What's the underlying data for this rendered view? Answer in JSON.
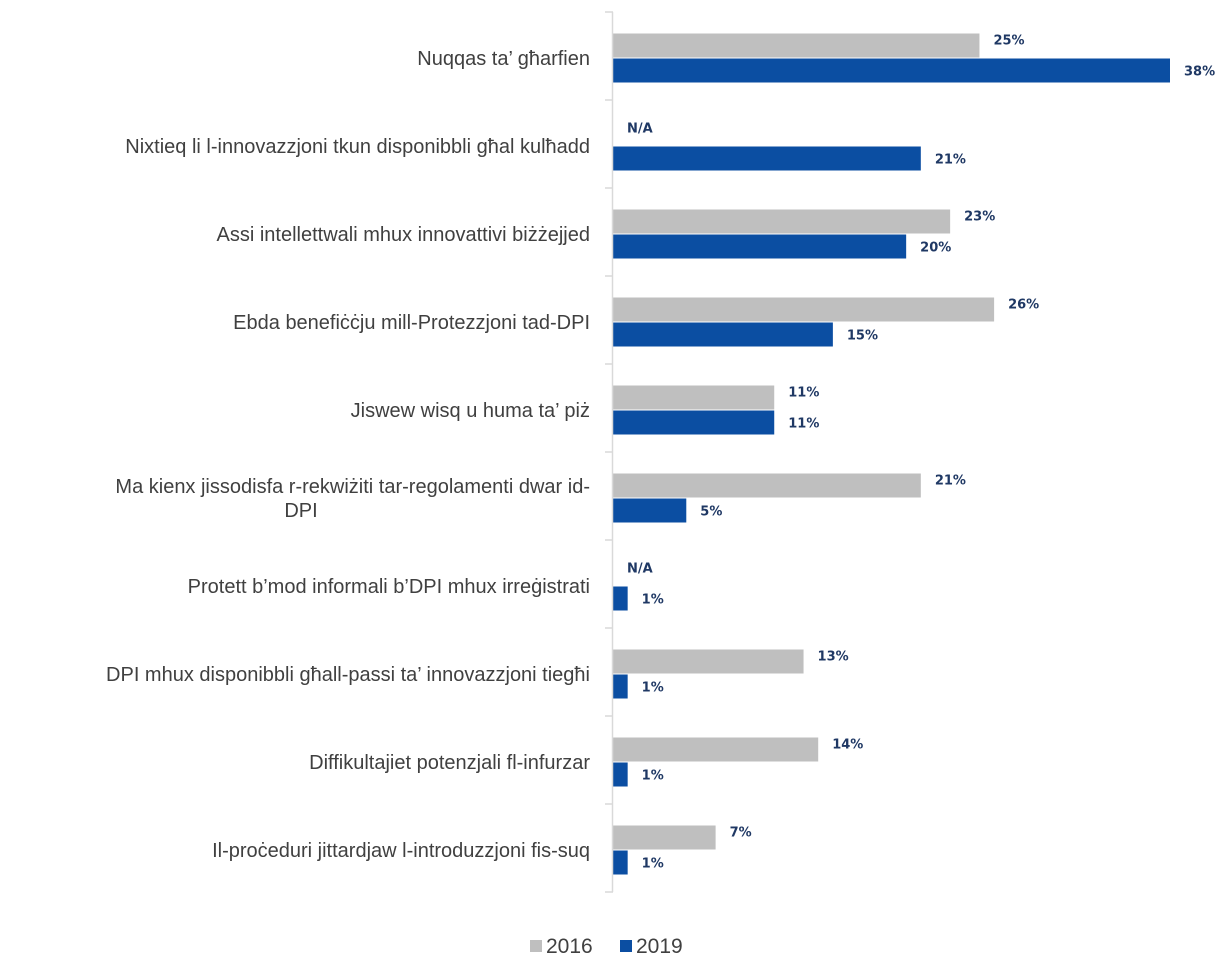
{
  "chart_data": {
    "type": "bar",
    "orientation": "horizontal",
    "categories": [
      "Nuqqas ta’ għarfien",
      "Nixtieq li l-innovazzjoni tkun disponibbli għal kulħadd",
      "Assi intellettwali mhux innovattivi biżżejjed",
      "Ebda benefiċċju mill-Protezzjoni tad-DPI",
      "Jiswew wisq u huma ta’ piż",
      "Ma kienx jissodisfa r-rekwiżiti tar-regolamenti dwar id-DPI",
      "Protett b’mod informali b’DPI mhux irreġistrati",
      "DPI mhux disponibbli għall-passi ta’ innovazzjoni tiegħi",
      "Diffikultajiet potenzjali fl-infurzar",
      "Il-proċeduri jittardjaw l-introduzzjoni fis-suq"
    ],
    "category_lines": [
      [
        "Nuqqas ta’ għarfien"
      ],
      [
        "Nixtieq li l-innovazzjoni tkun disponibbli għal kulħadd"
      ],
      [
        "Assi intellettwali mhux innovattivi biżżejjed"
      ],
      [
        "Ebda benefiċċju mill-Protezzjoni tad-DPI"
      ],
      [
        "Jiswew wisq u huma ta’ piż"
      ],
      [
        "Ma kienx jissodisfa r-rekwiżiti tar-regolamenti dwar id-",
        "DPI"
      ],
      [
        "Protett b’mod informali b’DPI mhux irreġistrati"
      ],
      [
        "DPI mhux disponibbli għall-passi ta’ innovazzjoni tiegħi"
      ],
      [
        "Diffikultajiet potenzjali fl-infurzar"
      ],
      [
        "Il-proċeduri jittardjaw l-introduzzjoni fis-suq"
      ]
    ],
    "series": [
      {
        "name": "2016",
        "color": "#bfbfbf",
        "values": [
          25,
          null,
          23,
          26,
          11,
          21,
          null,
          13,
          14,
          7
        ],
        "labels": [
          "25%",
          "N/A",
          "23%",
          "26%",
          "11%",
          "21%",
          "N/A",
          "13%",
          "14%",
          "7%"
        ]
      },
      {
        "name": "2019",
        "color": "#0b4ea2",
        "values": [
          38,
          21,
          20,
          15,
          11,
          5,
          1,
          1,
          1,
          1
        ],
        "labels": [
          "38%",
          "21%",
          "20%",
          "15%",
          "11%",
          "5%",
          "1%",
          "1%",
          "1%",
          "1%"
        ]
      }
    ],
    "xlim": [
      0,
      40
    ],
    "grid": false,
    "legend_position": "bottom",
    "title": "",
    "xlabel": "",
    "ylabel": ""
  }
}
